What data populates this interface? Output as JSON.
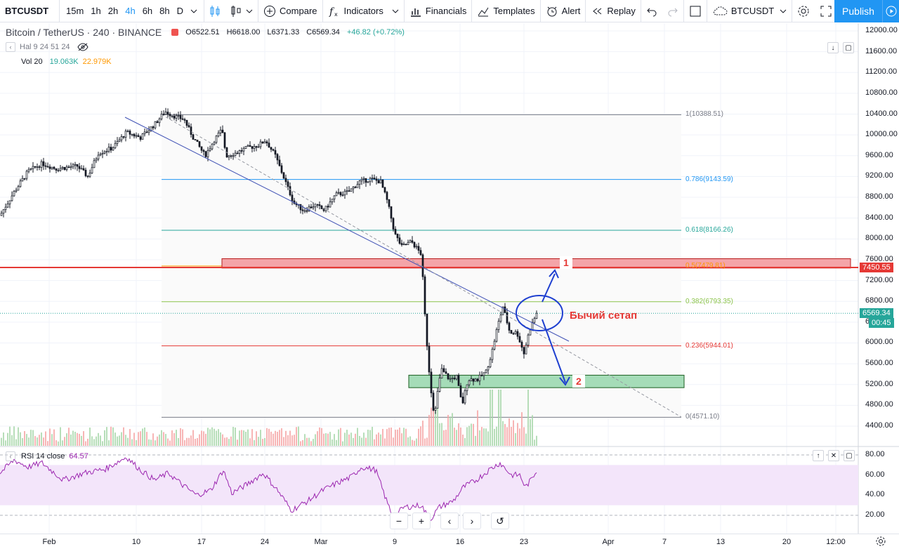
{
  "toolbar": {
    "symbol": "BTCUSDT",
    "timeframes": [
      "15m",
      "1h",
      "2h",
      "4h",
      "6h",
      "8h",
      "D"
    ],
    "active_timeframe": "4h",
    "compare": "Compare",
    "indicators": "Indicators",
    "financials": "Financials",
    "templates": "Templates",
    "alert": "Alert",
    "replay": "Replay",
    "layout_symbol": "BTCUSDT",
    "publish": "Publish"
  },
  "legend": {
    "title": "Bitcoin / TetherUS · 240 · BINANCE",
    "open": "O6522.51",
    "high": "H6618.00",
    "low": "L6371.33",
    "close": "C6569.34",
    "change": "+46.82 (+0.72%)",
    "indicator1": "Hal 9 24 51 24",
    "vol_label": "Vol 20",
    "vol_value1": "19.063K",
    "vol_value2": "22.979K",
    "rsi_label": "RSI 14 close",
    "rsi_value": "64.57"
  },
  "price_axis": [
    "12000.00",
    "11600.00",
    "11200.00",
    "10800.00",
    "10400.00",
    "10000.00",
    "9600.00",
    "9200.00",
    "8800.00",
    "8400.00",
    "8000.00",
    "7600.00",
    "7200.00",
    "6800.00",
    "6400.00",
    "6000.00",
    "5600.00",
    "5200.00",
    "4800.00",
    "4400.00"
  ],
  "price_tags": {
    "level": "7450.55",
    "last": "6569.34",
    "countdown": "00:45"
  },
  "rsi_axis": [
    "80.00",
    "60.00",
    "40.00",
    "20.00"
  ],
  "time_axis": [
    "Feb",
    "10",
    "17",
    "24",
    "Mar",
    "9",
    "16",
    "23",
    "Apr",
    "7",
    "13",
    "20",
    "12:00"
  ],
  "fib_levels": [
    {
      "label": "1(10388.51)",
      "price": 10388.51,
      "color": "#787b86"
    },
    {
      "label": "0.786(9143.59)",
      "price": 9143.59,
      "color": "#2196f3"
    },
    {
      "label": "0.618(8166.26)",
      "price": 8166.26,
      "color": "#26a69a"
    },
    {
      "label": "0.5(7479.81)",
      "price": 7479.81,
      "color": "#ff9800"
    },
    {
      "label": "0.382(6793.35)",
      "price": 6793.35,
      "color": "#8bc34a"
    },
    {
      "label": "0.236(5944.01)",
      "price": 5944.01,
      "color": "#e53935"
    },
    {
      "label": "0(4571.10)",
      "price": 4571.1,
      "color": "#787b86"
    }
  ],
  "annotations": {
    "zone1": "1",
    "zone2": "2",
    "setup": "Бычий сетап"
  },
  "colors": {
    "accent": "#2196f3",
    "up": "#26a69a",
    "down": "#ef5350",
    "candle": "#131722",
    "level_line": "#e53935",
    "trend_line": "#3f51b5",
    "resistance_zone": "#f4a4a8",
    "support_zone": "#a5dcb8",
    "rsi_line": "#9c27b0",
    "rsi_band": "#f3e5fa"
  }
}
